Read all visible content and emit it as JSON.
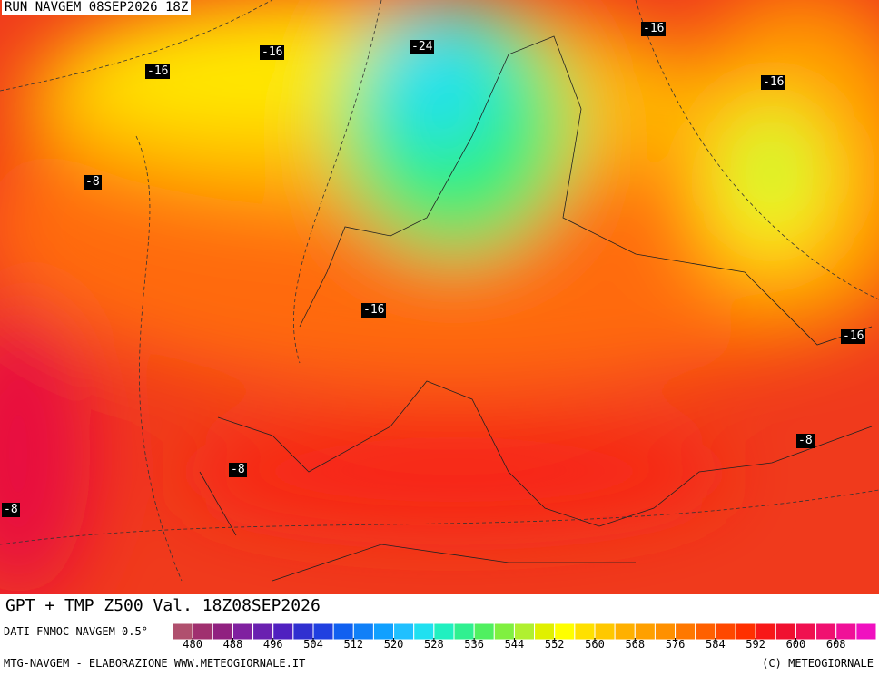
{
  "header": {
    "run": "RUN NAVGEM 08SEP2026 18Z"
  },
  "contour_labels": [
    "-16",
    "-16",
    "-24",
    "-16",
    "-16",
    "-8",
    "-16",
    "-16",
    "-8",
    "-8",
    "-8"
  ],
  "title": "GPT + TMP Z500 Val. 18Z08SEP2026",
  "legend": {
    "source": "DATI FNMOC NAVGEM 0.5°",
    "lim": [
      476,
      616
    ],
    "ticks": [
      480,
      488,
      496,
      504,
      512,
      520,
      528,
      536,
      544,
      552,
      560,
      568,
      576,
      584,
      592,
      600,
      608
    ],
    "colors": [
      "#b0506e",
      "#a0306f",
      "#902080",
      "#8020a0",
      "#6a20b0",
      "#5020c0",
      "#3030d0",
      "#2040e0",
      "#1060f0",
      "#1080f8",
      "#10a0ff",
      "#20c0ff",
      "#20e0f0",
      "#20f0c0",
      "#30f090",
      "#50f060",
      "#80f040",
      "#b0f030",
      "#e0f000",
      "#ffff00",
      "#ffe000",
      "#ffc800",
      "#ffb000",
      "#ffa000",
      "#ff9000",
      "#ff7800",
      "#ff6000",
      "#ff4800",
      "#ff3000",
      "#f81818",
      "#f01030",
      "#f01050",
      "#f01070",
      "#f01098",
      "#f010c0"
    ]
  },
  "footer": {
    "left": "MTG-NAVGEM - ELABORAZIONE WWW.METEOGIORNALE.IT",
    "right": "(C) METEOGIORNALE"
  }
}
